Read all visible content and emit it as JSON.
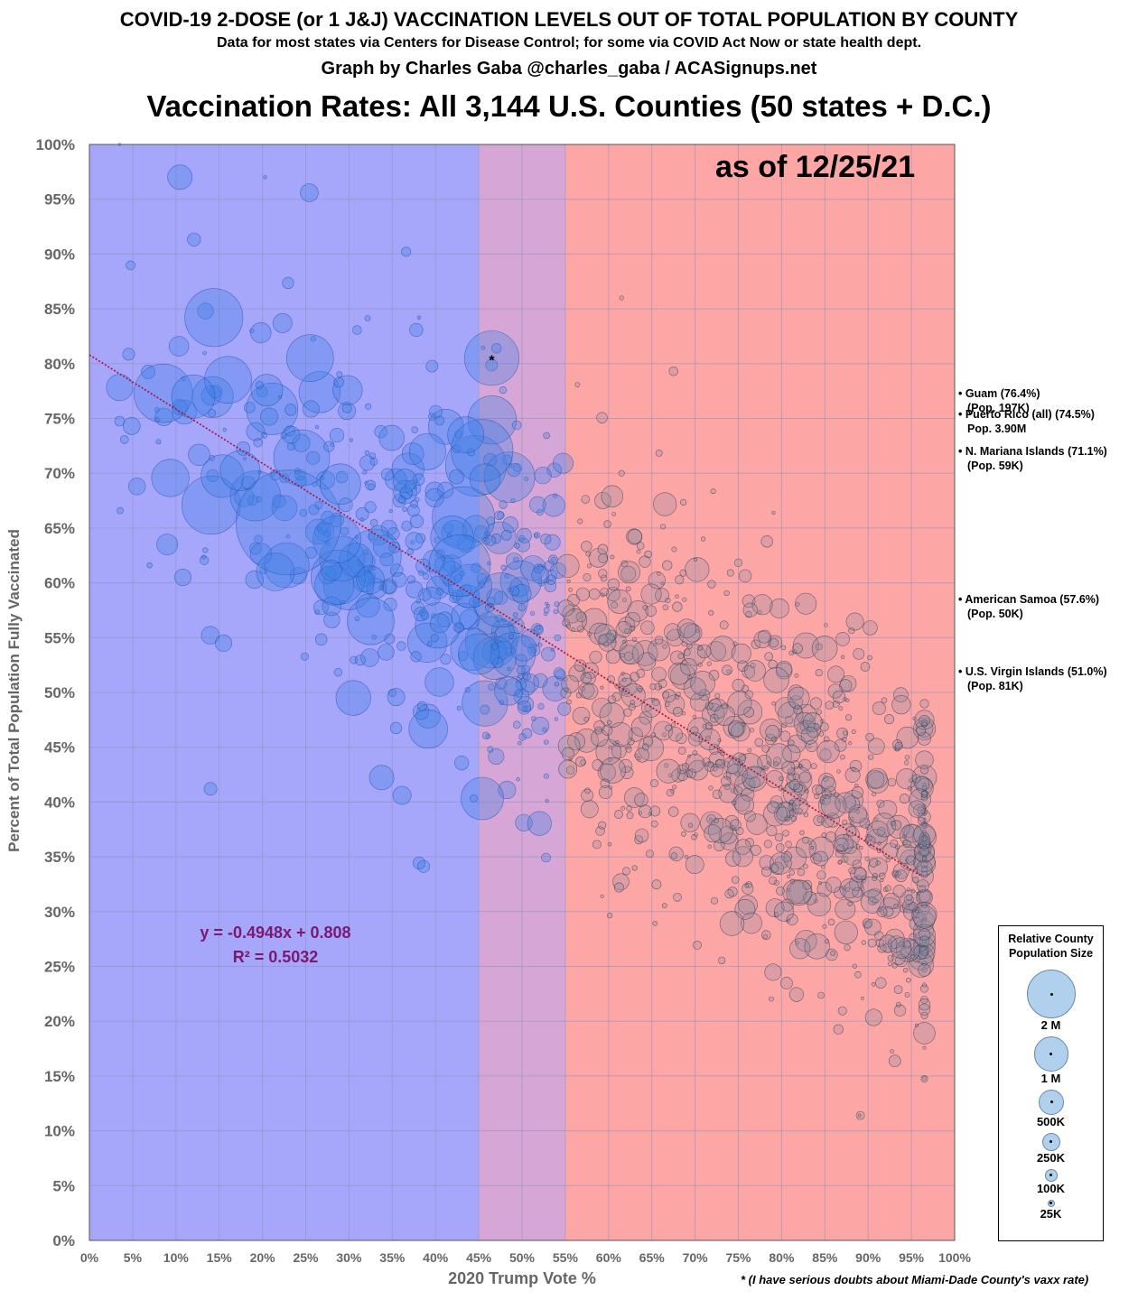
{
  "header": {
    "line1": "COVID-19 2-DOSE (or 1 J&J) VACCINATION LEVELS OUT OF TOTAL POPULATION BY COUNTY",
    "line2": "Data for most states via Centers for Disease Control; for some via COVID Act Now or state health dept.",
    "line3": "Graph by Charles Gaba @charles_gaba / ACASignups.net",
    "line4": "Vaccination Rates: All 3,144 U.S. Counties (50 states + D.C.)"
  },
  "as_of": "as of 12/25/21",
  "equation": {
    "line1": "y = -0.4948x + 0.808",
    "line2": "R² = 0.5032"
  },
  "footnote": "* (I have serious doubts  about Miami-Dade County's vaxx rate)",
  "territories": [
    {
      "line1": "• Guam (76.4%)",
      "line2": "(Pop. 197K)",
      "value": 76.4
    },
    {
      "line1": "• Puerto Rico (all) (74.5%)",
      "line2": "Pop. 3.90M",
      "value": 74.5
    },
    {
      "line1": "• N. Mariana Islands (71.1%)",
      "line2": "(Pop. 59K)",
      "value": 71.1
    },
    {
      "line1": "• American Samoa (57.6%)",
      "line2": "(Pop. 50K)",
      "value": 57.6
    },
    {
      "line1": "• U.S. Virgin Islands (51.0%)",
      "line2": "(Pop. 81K)",
      "value": 51.0
    }
  ],
  "legend": {
    "title": "Relative County Population Size",
    "items": [
      {
        "label": "2 M",
        "population": 2000000
      },
      {
        "label": "1 M",
        "population": 1000000
      },
      {
        "label": "500K",
        "population": 500000
      },
      {
        "label": "250K",
        "population": 250000
      },
      {
        "label": "100K",
        "population": 100000
      },
      {
        "label": "25K",
        "population": 25000
      }
    ]
  },
  "chart_data": {
    "type": "scatter",
    "title": "Vaccination Rates: All 3,144 U.S. Counties (50 states + D.C.)",
    "xlabel": "2020 Trump Vote %",
    "ylabel": "Percent of Total Population Fully Vaccinated",
    "xlim": [
      0,
      100
    ],
    "ylim": [
      0,
      100
    ],
    "x_ticks": [
      "0%",
      "5%",
      "10%",
      "15%",
      "20%",
      "25%",
      "30%",
      "35%",
      "40%",
      "45%",
      "50%",
      "55%",
      "60%",
      "65%",
      "70%",
      "75%",
      "80%",
      "85%",
      "90%",
      "95%",
      "100%"
    ],
    "y_ticks": [
      "0%",
      "5%",
      "10%",
      "15%",
      "20%",
      "25%",
      "30%",
      "35%",
      "40%",
      "45%",
      "50%",
      "55%",
      "60%",
      "65%",
      "70%",
      "75%",
      "80%",
      "85%",
      "90%",
      "95%",
      "100%"
    ],
    "grid": true,
    "regions": [
      {
        "from": 0,
        "to": 45,
        "color": "#a6a6fb"
      },
      {
        "from": 45,
        "to": 55,
        "color": "#d6a6d6"
      },
      {
        "from": 55,
        "to": 100,
        "color": "#fca6a6"
      }
    ],
    "trendline": {
      "slope": -0.4948,
      "intercept": 0.808,
      "r2": 0.5032,
      "x_range": [
        0,
        96
      ],
      "color": "#b0103a"
    },
    "bubble_color_dem": "#3a7fe6",
    "bubble_color_rep": "#8a8aa0",
    "highlight_points": [
      {
        "x": 23,
        "y": 65.5,
        "pop": 10000000
      },
      {
        "x": 46.5,
        "y": 80.5,
        "pop": 2700000,
        "marker": "*"
      },
      {
        "x": 25.5,
        "y": 80.5,
        "pop": 2000000
      },
      {
        "x": 12,
        "y": 77,
        "pop": 1700000
      },
      {
        "x": 29,
        "y": 69,
        "pop": 1500000
      },
      {
        "x": 30.5,
        "y": 49.5,
        "pop": 1100000
      },
      {
        "x": 21.5,
        "y": 61,
        "pop": 1300000
      },
      {
        "x": 45,
        "y": 53.5,
        "pop": 1500000
      },
      {
        "x": 43.5,
        "y": 73.5,
        "pop": 1200000
      },
      {
        "x": 32.5,
        "y": 56.5,
        "pop": 2000000
      },
      {
        "x": 5.5,
        "y": 68.8,
        "pop": 260000
      },
      {
        "x": 9,
        "y": 63.5,
        "pop": 400000
      },
      {
        "x": 10.8,
        "y": 60.5,
        "pop": 250000
      },
      {
        "x": 15.5,
        "y": 54.5,
        "pop": 250000
      },
      {
        "x": 14,
        "y": 41.2,
        "pop": 150000
      },
      {
        "x": 67.5,
        "y": 79.3,
        "pop": 70000
      },
      {
        "x": 61.5,
        "y": 86,
        "pop": 15000
      },
      {
        "x": 89,
        "y": 11.4,
        "pop": 8000
      },
      {
        "x": 3.5,
        "y": 100,
        "pop": 5000
      },
      {
        "x": 20.3,
        "y": 97,
        "pop": 10000
      }
    ],
    "cloud_description": "3,144 county bubbles scattered along the trendline; blue for Trump vote below 55%, grey above",
    "cloud_summary": {
      "count": 3144,
      "min_x": 3.5,
      "max_x": 96.5,
      "min_y": 11.4,
      "max_y": 100
    }
  }
}
